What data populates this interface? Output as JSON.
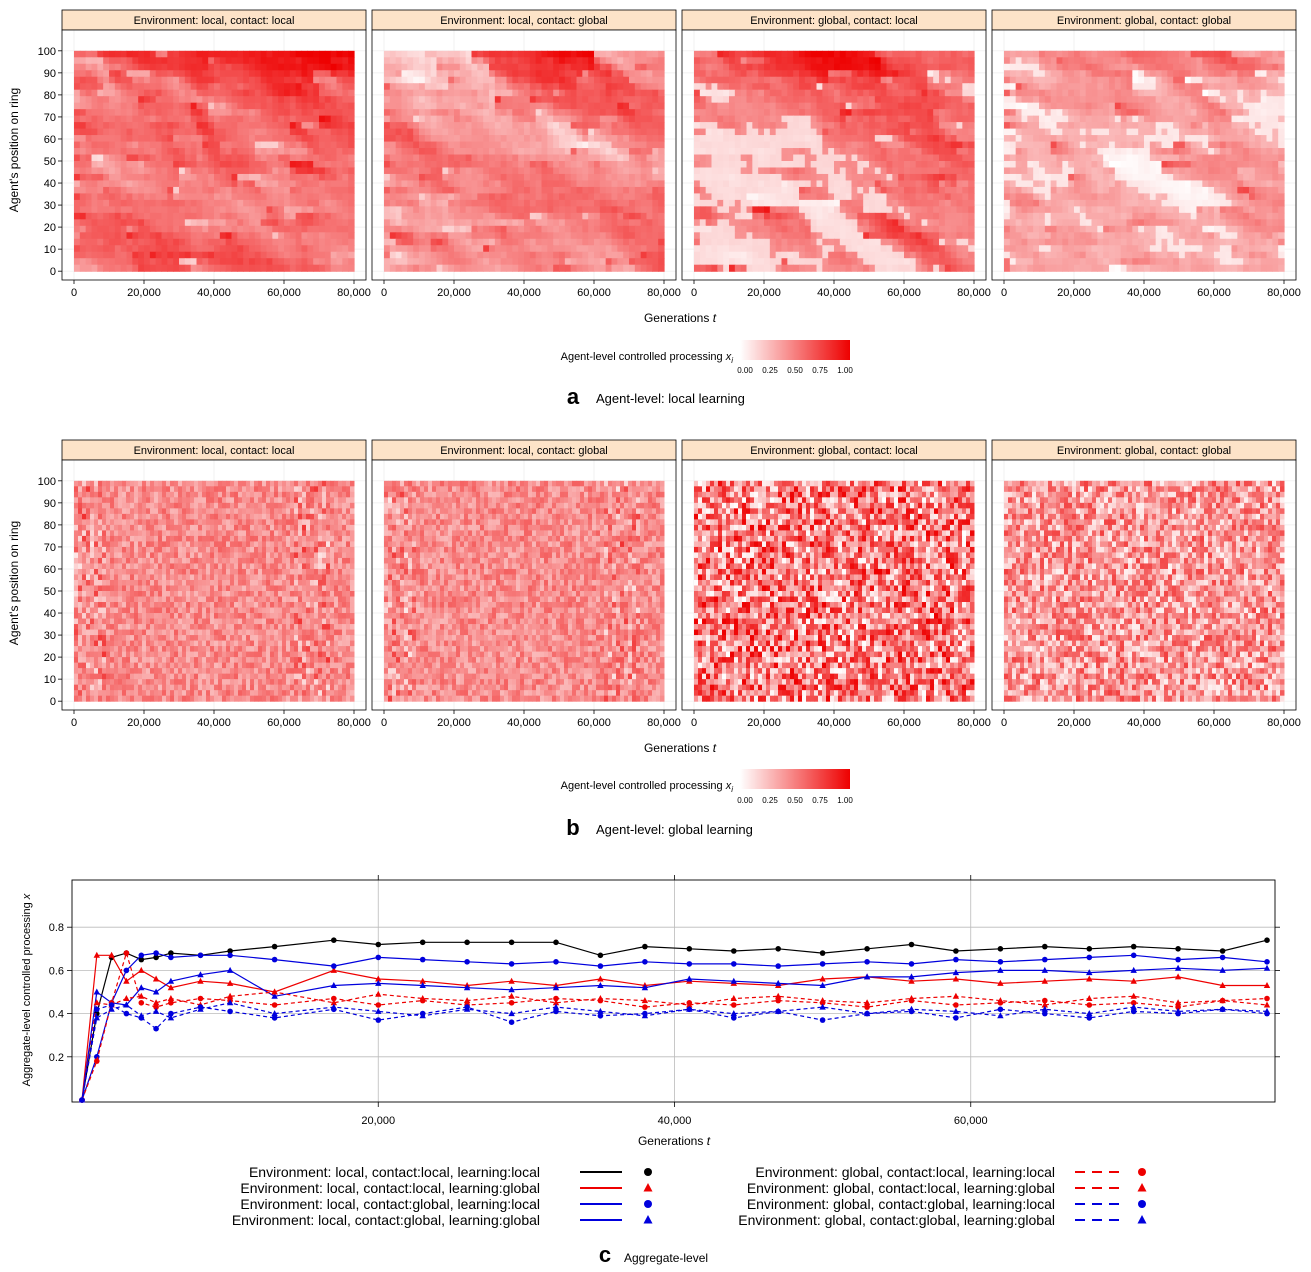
{
  "colors": {
    "heat_low": "#ffffff",
    "heat_high": "#ee0000",
    "strip_fill": "#fde3c8",
    "black": "#000000",
    "red": "#ee0000",
    "blue": "#0000dd"
  },
  "panel_a": {
    "letter": "a",
    "caption": "Agent-level: local learning",
    "strips": [
      "Environment: local, contact: local",
      "Environment: local, contact: global",
      "Environment: global, contact: local",
      "Environment: global, contact: global"
    ],
    "ylabel": "Agent's position on ring",
    "xlabel": "Generations",
    "xlabel_var": "t",
    "colorbar_label": "Agent-level controlled processing",
    "colorbar_var": "x",
    "colorbar_sub": "i",
    "colorbar_ticks": [
      "0.00",
      "0.25",
      "0.50",
      "0.75",
      "1.00"
    ]
  },
  "panel_b": {
    "letter": "b",
    "caption": "Agent-level: global learning",
    "strips": [
      "Environment: local, contact: local",
      "Environment: local, contact: global",
      "Environment: global, contact: local",
      "Environment: global, contact: global"
    ],
    "ylabel": "Agent's position on ring",
    "xlabel": "Generations",
    "xlabel_var": "t",
    "colorbar_label": "Agent-level controlled processing",
    "colorbar_var": "x",
    "colorbar_sub": "i",
    "colorbar_ticks": [
      "0.00",
      "0.25",
      "0.50",
      "0.75",
      "1.00"
    ]
  },
  "panel_c": {
    "letter": "c",
    "caption": "Aggregate-level",
    "ylabel": "Aggregate-level controlled processing",
    "ylabel_var": "x",
    "xlabel": "Generations",
    "xlabel_var": "t"
  },
  "legend": [
    {
      "label": "Environment: local, contact:local, learning:local",
      "color": "#000000",
      "dash": false,
      "marker": "circle"
    },
    {
      "label": "Environment: local, contact:local, learning:global",
      "color": "#ee0000",
      "dash": false,
      "marker": "triangle"
    },
    {
      "label": "Environment: local, contact:global, learning:local",
      "color": "#0000dd",
      "dash": false,
      "marker": "circle"
    },
    {
      "label": "Environment: local, contact:global, learning:global",
      "color": "#0000dd",
      "dash": false,
      "marker": "triangle"
    },
    {
      "label": "Environment: global, contact:local, learning:local",
      "color": "#ee0000",
      "dash": true,
      "marker": "circle"
    },
    {
      "label": "Environment: global, contact:local, learning:global",
      "color": "#ee0000",
      "dash": true,
      "marker": "triangle"
    },
    {
      "label": "Environment: global, contact:global, learning:local",
      "color": "#0000dd",
      "dash": true,
      "marker": "circle"
    },
    {
      "label": "Environment: global, contact:global, learning:global",
      "color": "#0000dd",
      "dash": true,
      "marker": "triangle"
    }
  ],
  "chart_data": [
    {
      "type": "heatmap",
      "panel": "a",
      "facets": [
        "Environment: local, contact: local",
        "Environment: local, contact: global",
        "Environment: global, contact: local",
        "Environment: global, contact: global"
      ],
      "xlabel": "Generations t",
      "ylabel": "Agent's position on ring",
      "xlim": [
        0,
        80000
      ],
      "ylim": [
        0,
        100
      ],
      "x_ticks": [
        0,
        20000,
        40000,
        60000,
        80000
      ],
      "x_tick_labels": [
        "0",
        "20,000",
        "40,000",
        "60,000",
        "80,000"
      ],
      "y_ticks": [
        0,
        10,
        20,
        30,
        40,
        50,
        60,
        70,
        80,
        90,
        100
      ],
      "color_scale": {
        "label": "Agent-level controlled processing x_i",
        "min": 0,
        "max": 1,
        "low": "#ffffff",
        "high": "#ee0000"
      },
      "mean_level": [
        0.55,
        0.45,
        0.5,
        0.35
      ]
    },
    {
      "type": "heatmap",
      "panel": "b",
      "facets": [
        "Environment: local, contact: local",
        "Environment: local, contact: global",
        "Environment: global, contact: local",
        "Environment: global, contact: global"
      ],
      "xlabel": "Generations t",
      "ylabel": "Agent's position on ring",
      "xlim": [
        0,
        80000
      ],
      "ylim": [
        0,
        100
      ],
      "x_ticks": [
        0,
        20000,
        40000,
        60000,
        80000
      ],
      "x_tick_labels": [
        "0",
        "20,000",
        "40,000",
        "60,000",
        "80,000"
      ],
      "y_ticks": [
        0,
        10,
        20,
        30,
        40,
        50,
        60,
        70,
        80,
        90,
        100
      ],
      "color_scale": {
        "label": "Agent-level controlled processing x_i",
        "min": 0,
        "max": 1,
        "low": "#ffffff",
        "high": "#ee0000"
      },
      "mean_level": [
        0.45,
        0.45,
        0.5,
        0.4
      ]
    },
    {
      "type": "line",
      "panel": "c",
      "xlabel": "Generations t",
      "ylabel": "Aggregate-level controlled processing x",
      "xlim": [
        0,
        80000
      ],
      "ylim": [
        0,
        1
      ],
      "x_ticks": [
        20000,
        40000,
        60000
      ],
      "x_tick_labels": [
        "20,000",
        "40,000",
        "60,000"
      ],
      "y_ticks": [
        0.2,
        0.4,
        0.6,
        0.8
      ],
      "y_tick_labels": [
        "0.2",
        "0.4",
        "0.6",
        "0.8"
      ],
      "grid": true,
      "x": [
        0,
        1000,
        2000,
        3000,
        4000,
        5000,
        6000,
        8000,
        10000,
        13000,
        17000,
        20000,
        23000,
        26000,
        29000,
        32000,
        35000,
        38000,
        41000,
        44000,
        47000,
        50000,
        53000,
        56000,
        59000,
        62000,
        65000,
        68000,
        71000,
        74000,
        77000,
        80000
      ],
      "series": [
        {
          "name": "Environment: local, contact:local, learning:local",
          "color": "#000000",
          "dash": false,
          "marker": "circle",
          "values": [
            0.0,
            0.4,
            0.66,
            0.68,
            0.65,
            0.66,
            0.68,
            0.67,
            0.69,
            0.71,
            0.74,
            0.72,
            0.73,
            0.73,
            0.73,
            0.73,
            0.67,
            0.71,
            0.7,
            0.69,
            0.7,
            0.68,
            0.7,
            0.72,
            0.69,
            0.7,
            0.71,
            0.7,
            0.71,
            0.7,
            0.69,
            0.74
          ]
        },
        {
          "name": "Environment: local, contact:local, learning:global",
          "color": "#ee0000",
          "dash": false,
          "marker": "triangle",
          "values": [
            0.0,
            0.67,
            0.67,
            0.55,
            0.6,
            0.56,
            0.52,
            0.55,
            0.54,
            0.5,
            0.6,
            0.56,
            0.55,
            0.53,
            0.55,
            0.53,
            0.56,
            0.53,
            0.55,
            0.54,
            0.53,
            0.56,
            0.57,
            0.55,
            0.56,
            0.54,
            0.55,
            0.56,
            0.55,
            0.57,
            0.53,
            0.53
          ]
        },
        {
          "name": "Environment: local, contact:global, learning:local",
          "color": "#0000dd",
          "dash": false,
          "marker": "circle",
          "values": [
            0.0,
            0.2,
            0.45,
            0.6,
            0.67,
            0.68,
            0.66,
            0.67,
            0.67,
            0.65,
            0.62,
            0.66,
            0.65,
            0.64,
            0.63,
            0.64,
            0.62,
            0.64,
            0.63,
            0.63,
            0.62,
            0.63,
            0.64,
            0.63,
            0.65,
            0.64,
            0.65,
            0.66,
            0.67,
            0.65,
            0.66,
            0.64
          ]
        },
        {
          "name": "Environment: local, contact:global, learning:global",
          "color": "#0000dd",
          "dash": false,
          "marker": "triangle",
          "values": [
            0.0,
            0.5,
            0.45,
            0.44,
            0.52,
            0.5,
            0.55,
            0.58,
            0.6,
            0.48,
            0.53,
            0.54,
            0.53,
            0.52,
            0.51,
            0.52,
            0.53,
            0.52,
            0.56,
            0.55,
            0.54,
            0.53,
            0.57,
            0.57,
            0.59,
            0.6,
            0.6,
            0.59,
            0.6,
            0.61,
            0.6,
            0.61
          ]
        },
        {
          "name": "Environment: global, contact:local, learning:local",
          "color": "#ee0000",
          "dash": true,
          "marker": "circle",
          "values": [
            0.0,
            0.18,
            0.45,
            0.68,
            0.45,
            0.43,
            0.45,
            0.47,
            0.46,
            0.44,
            0.47,
            0.44,
            0.46,
            0.44,
            0.45,
            0.47,
            0.46,
            0.43,
            0.45,
            0.44,
            0.46,
            0.45,
            0.43,
            0.46,
            0.44,
            0.45,
            0.46,
            0.44,
            0.45,
            0.43,
            0.46,
            0.47
          ]
        },
        {
          "name": "Environment: global, contact:local, learning:global",
          "color": "#ee0000",
          "dash": true,
          "marker": "triangle",
          "values": [
            0.0,
            0.45,
            0.44,
            0.47,
            0.48,
            0.45,
            0.47,
            0.44,
            0.48,
            0.5,
            0.45,
            0.49,
            0.47,
            0.46,
            0.48,
            0.45,
            0.47,
            0.46,
            0.44,
            0.47,
            0.48,
            0.46,
            0.45,
            0.47,
            0.48,
            0.46,
            0.44,
            0.47,
            0.48,
            0.45,
            0.46,
            0.44
          ]
        },
        {
          "name": "Environment: global, contact:global, learning:local",
          "color": "#0000dd",
          "dash": true,
          "marker": "circle",
          "values": [
            0.0,
            0.42,
            0.44,
            0.4,
            0.38,
            0.33,
            0.4,
            0.43,
            0.41,
            0.38,
            0.42,
            0.37,
            0.4,
            0.43,
            0.36,
            0.41,
            0.39,
            0.4,
            0.42,
            0.38,
            0.41,
            0.37,
            0.4,
            0.41,
            0.38,
            0.42,
            0.4,
            0.38,
            0.41,
            0.4,
            0.42,
            0.4
          ]
        },
        {
          "name": "Environment: global, contact:global, learning:global",
          "color": "#0000dd",
          "dash": true,
          "marker": "triangle",
          "values": [
            0.0,
            0.38,
            0.42,
            0.44,
            0.39,
            0.41,
            0.38,
            0.42,
            0.45,
            0.4,
            0.43,
            0.41,
            0.39,
            0.42,
            0.4,
            0.43,
            0.41,
            0.39,
            0.42,
            0.4,
            0.41,
            0.43,
            0.4,
            0.42,
            0.41,
            0.39,
            0.42,
            0.4,
            0.43,
            0.41,
            0.42,
            0.41
          ]
        }
      ]
    }
  ]
}
